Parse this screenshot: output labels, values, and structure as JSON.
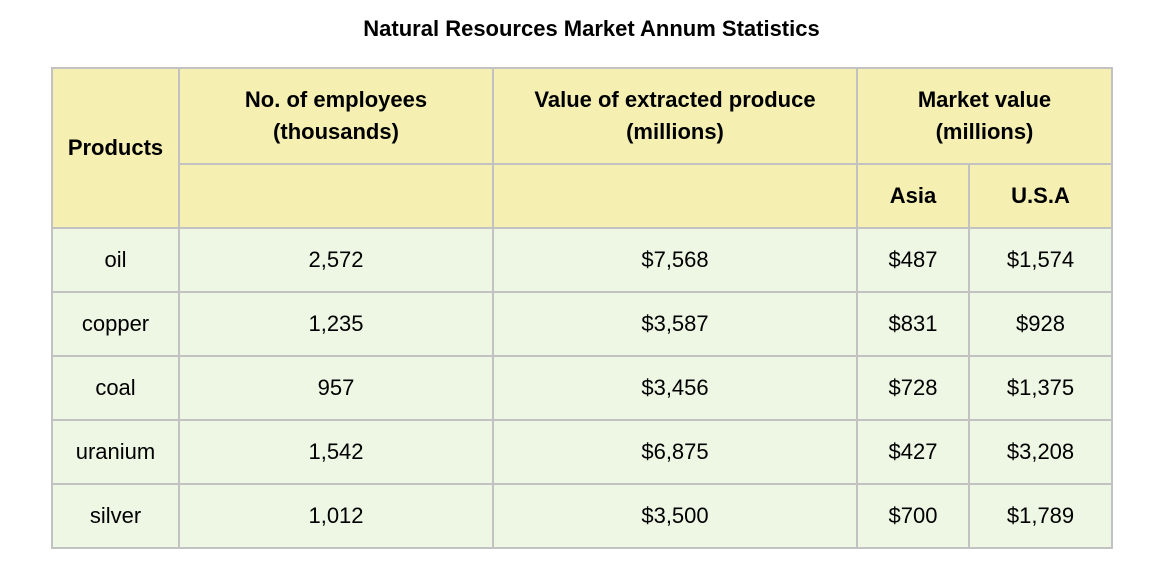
{
  "chart_data": {
    "type": "table",
    "title": "Natural Resources Market Annum Statistics",
    "headers": {
      "products": "Products",
      "employees_line1": "No. of employees",
      "employees_line2": "(thousands)",
      "extracted_line1": "Value of extracted produce",
      "extracted_line2": "(millions)",
      "market_line1": "Market value",
      "market_line2": "(millions)",
      "asia": "Asia",
      "usa": "U.S.A"
    },
    "rows": [
      {
        "product": "oil",
        "employees": "2,572",
        "extracted": "$7,568",
        "asia": "$487",
        "usa": "$1,574"
      },
      {
        "product": "copper",
        "employees": "1,235",
        "extracted": "$3,587",
        "asia": "$831",
        "usa": "$928"
      },
      {
        "product": "coal",
        "employees": "957",
        "extracted": "$3,456",
        "asia": "$728",
        "usa": "$1,375"
      },
      {
        "product": "uranium",
        "employees": "1,542",
        "extracted": "$6,875",
        "asia": "$427",
        "usa": "$3,208"
      },
      {
        "product": "silver",
        "employees": "1,012",
        "extracted": "$3,500",
        "asia": "$700",
        "usa": "$1,789"
      }
    ]
  },
  "colors": {
    "header_bg": "#f5f0b2",
    "body_bg": "#edf7e4",
    "border": "#c2c2c2"
  }
}
